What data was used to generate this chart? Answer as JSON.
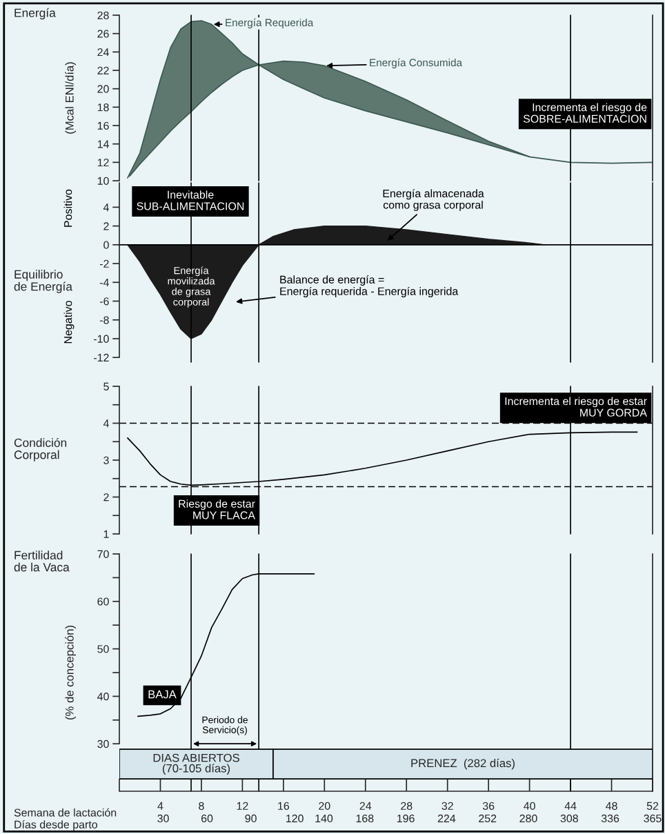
{
  "chart_data": [
    {
      "type": "line",
      "title": "Energía",
      "ylabel": "(Mcal ENl/día)",
      "xlim": [
        0,
        52
      ],
      "ylim": [
        10,
        28
      ],
      "yticks": [
        10,
        12,
        14,
        16,
        18,
        20,
        22,
        24,
        26,
        28
      ],
      "tick_labels": "y",
      "x": [
        0.8,
        2,
        3,
        4,
        5,
        6,
        7,
        8,
        9,
        10,
        11,
        12,
        13.6,
        16,
        18,
        20,
        24,
        28,
        32,
        36,
        40,
        44,
        48,
        52
      ],
      "series": [
        {
          "name": "Energía Requerida",
          "color": "#3b594f",
          "values": [
            10.3,
            13,
            17,
            21,
            24.5,
            26.5,
            27.3,
            27.4,
            27,
            26,
            25,
            23.8,
            22.6,
            21,
            20,
            19,
            17.6,
            16.4,
            15.2,
            13.9,
            12.6,
            12,
            11.9,
            12
          ],
          "lower": [
            10.3,
            11.8,
            13,
            14.2,
            15.4,
            16.5,
            17.5,
            18.6,
            19.6,
            20.5,
            21.3,
            22,
            22.6,
            23,
            22.9,
            22.5,
            20.8,
            18.8,
            16.5,
            14.3,
            12.6,
            12,
            11.9,
            12
          ],
          "upper": [
            10.3,
            13,
            17,
            21,
            24.5,
            26.5,
            27.3,
            27.4,
            27,
            26,
            25,
            23.8,
            22.6,
            21,
            20,
            19,
            17.6,
            16.4,
            15.2,
            13.9,
            12.6,
            12,
            11.9,
            12
          ]
        },
        {
          "name": "Energía Consumida",
          "color": "#3b594f",
          "x": [
            1,
            2,
            3,
            4,
            5,
            6,
            7,
            8,
            9,
            10,
            11,
            12,
            13.6,
            16,
            18,
            20,
            24,
            28,
            32,
            36,
            40
          ],
          "values": [
            10.5,
            11.8,
            13,
            14.2,
            15.4,
            16.5,
            17.5,
            18.6,
            19.6,
            20.5,
            21.3,
            22,
            22.6,
            23,
            22.9,
            22.5,
            20.8,
            18.8,
            16.5,
            14.3,
            12.6
          ]
        }
      ],
      "ref_lines": [
        {
          "axis": "x",
          "value": 7
        },
        {
          "axis": "x",
          "value": 13.6
        },
        {
          "axis": "x",
          "value": 44
        }
      ],
      "annotations": [
        "Incrementa el riesgo de\nSOBRE-ALIMENTACION"
      ]
    },
    {
      "type": "area",
      "title": "Equilibrio\nde Energía",
      "color": "#1c1c1c",
      "xlim": [
        0,
        52
      ],
      "ylim": [
        -12.5,
        6.6
      ],
      "yticks": [
        4,
        2,
        0,
        -2,
        -4,
        -6,
        -8,
        -10,
        -12
      ],
      "tick_labels": "y",
      "x": [
        0.8,
        2,
        3,
        4,
        5,
        6,
        7,
        8,
        9,
        10,
        11,
        12,
        13.6,
        15,
        17,
        20,
        24,
        28,
        32,
        36,
        40,
        41.5
      ],
      "values": [
        0,
        -1.8,
        -3.6,
        -5.3,
        -7.2,
        -9,
        -10,
        -9.5,
        -8,
        -6,
        -4,
        -2.2,
        0,
        0.9,
        1.6,
        2,
        2,
        1.6,
        1.1,
        0.6,
        0.2,
        0
      ],
      "ref_lines": [
        {
          "axis": "x",
          "value": 7
        },
        {
          "axis": "x",
          "value": 13.6
        },
        {
          "axis": "x",
          "value": 44
        },
        {
          "axis": "y",
          "value": 0
        }
      ],
      "annotations": [
        "Positivo",
        "Negativo",
        "Inevitable\nSUB-ALIMENTACION",
        {
          "text": "Energía\nmovilizada\nde grasa\ncorporal",
          "x": 7,
          "y": -4.5
        },
        "Energía almacenada\ncomo grasa corporal",
        "Balance de energía =\nEnergía requerida - Energía ingerida"
      ]
    },
    {
      "type": "line",
      "title": "Condición\nCorporal",
      "color": "#000000",
      "xlim": [
        0,
        52
      ],
      "ylim": [
        1,
        5
      ],
      "tick_labels": "y",
      "yticks": [
        1,
        {
          "value": 1.5,
          "label": null
        },
        2,
        {
          "value": 2.5,
          "label": null
        },
        3,
        {
          "value": 3.5,
          "label": null
        },
        4,
        {
          "value": 4.5,
          "label": null
        },
        5
      ],
      "x": [
        0.8,
        2,
        3,
        4,
        5,
        6,
        7,
        8,
        10,
        13.6,
        16,
        20,
        24,
        28,
        32,
        36,
        40,
        44,
        48,
        50.5
      ],
      "values": [
        3.6,
        3.25,
        2.9,
        2.6,
        2.42,
        2.35,
        2.32,
        2.33,
        2.36,
        2.42,
        2.48,
        2.6,
        2.78,
        3.0,
        3.25,
        3.5,
        3.7,
        3.74,
        3.76,
        3.76
      ],
      "ref_lines": [
        {
          "axis": "x",
          "value": 7
        },
        {
          "axis": "x",
          "value": 13.6
        },
        {
          "axis": "x",
          "value": 44
        },
        {
          "axis": "y",
          "value": 4,
          "line_style": "dashed"
        },
        {
          "axis": "y",
          "value": 2.28,
          "line_style": "dashed"
        }
      ],
      "annotations": [
        "Incrementa el riesgo de estar\nMUY GORDA",
        "Riesgo de estar\nMUY FLACA"
      ]
    },
    {
      "type": "line",
      "title": "Fertilidad\nde la Vaca",
      "ylabel": "(% de concepción)",
      "xlabel": "Semana de lactación",
      "x2label": "Días desde parto",
      "color": "#000000",
      "xlim": [
        0,
        52
      ],
      "ylim": [
        20,
        70
      ],
      "yticks": [
        30,
        {
          "value": 35,
          "label": null
        },
        40,
        {
          "value": 45,
          "label": null
        },
        50,
        {
          "value": 55,
          "label": null
        },
        60,
        {
          "value": 65,
          "label": null
        },
        70
      ],
      "xticks": [
        {
          "value": 0,
          "label": null
        },
        4,
        8,
        12,
        16,
        20,
        24,
        28,
        32,
        36,
        40,
        44,
        48,
        52
      ],
      "x2lim": [
        0,
        365
      ],
      "x2ticks": [
        30,
        60,
        90,
        120,
        140,
        168,
        196,
        224,
        252,
        280,
        308,
        336,
        365
      ],
      "x": [
        1.8,
        3,
        4,
        5,
        6,
        7,
        8,
        9,
        10,
        11,
        12,
        13,
        13.6,
        19
      ],
      "values": [
        35.8,
        36,
        36.3,
        37.4,
        39.6,
        44,
        48.5,
        54.5,
        58.4,
        62.5,
        64.8,
        65.6,
        65.8,
        65.8
      ],
      "ref_lines": [
        {
          "axis": "x",
          "value": 7
        },
        {
          "axis": "x",
          "value": 13.6
        },
        {
          "axis": "x",
          "value": 44
        }
      ],
      "bands": [
        {
          "axis": "x",
          "from": 0,
          "to": 15,
          "label": "DIAS ABIERTOS\n(70-105 días)",
          "color": "#d6e6ec"
        },
        {
          "axis": "x",
          "from": 15,
          "to": 52,
          "label": "PRENEZ  (282 días)",
          "color": "#d6e6ec"
        }
      ],
      "annotations": [
        "BAJA",
        "Periodo de\nServicio(s)"
      ]
    }
  ]
}
